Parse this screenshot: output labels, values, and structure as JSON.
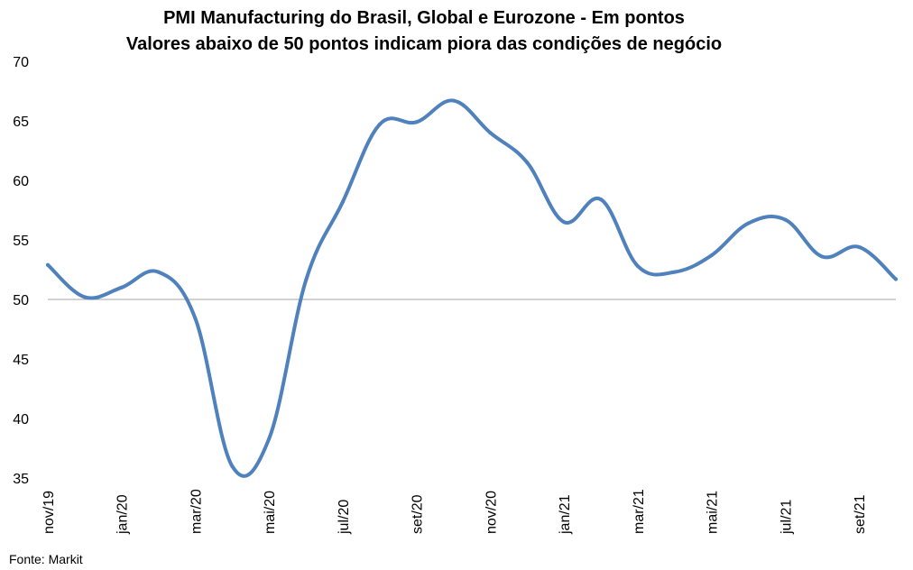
{
  "chart_data": {
    "type": "line",
    "title": "PMI Manufacturing do Brasil, Global e Eurozone - Em pontos",
    "subtitle": "Valores abaixo de 50 pontos indicam piora das condições de negócio",
    "xlabel": "",
    "ylabel": "",
    "ylim": [
      35,
      70
    ],
    "yticks": [
      35,
      40,
      45,
      50,
      55,
      60,
      65,
      70
    ],
    "reference_line": 50,
    "grid": false,
    "legend": "none",
    "series_color": "#4F81BD",
    "x": [
      "nov/19",
      "dez/19",
      "jan/20",
      "fev/20",
      "mar/20",
      "abr/20",
      "mai/20",
      "jun/20",
      "jul/20",
      "ago/20",
      "set/20",
      "out/20",
      "nov/20",
      "dez/20",
      "jan/21",
      "fev/21",
      "mar/21",
      "abr/21",
      "mai/21",
      "jun/21",
      "jul/21",
      "ago/21",
      "set/21",
      "out/21"
    ],
    "x_tick_labels": [
      "nov/19",
      "jan/20",
      "mar/20",
      "mai/20",
      "jul/20",
      "set/20",
      "nov/20",
      "jan/21",
      "mar/21",
      "mai/21",
      "jul/21",
      "set/21"
    ],
    "series": [
      {
        "values": [
          52.9,
          50.2,
          51.0,
          52.3,
          48.4,
          36.0,
          38.3,
          51.6,
          58.2,
          64.7,
          64.9,
          66.7,
          64.0,
          61.5,
          56.5,
          58.4,
          52.8,
          52.3,
          53.7,
          56.4,
          56.7,
          53.6,
          54.4,
          51.7
        ]
      }
    ]
  },
  "source": "Fonte: Markit"
}
